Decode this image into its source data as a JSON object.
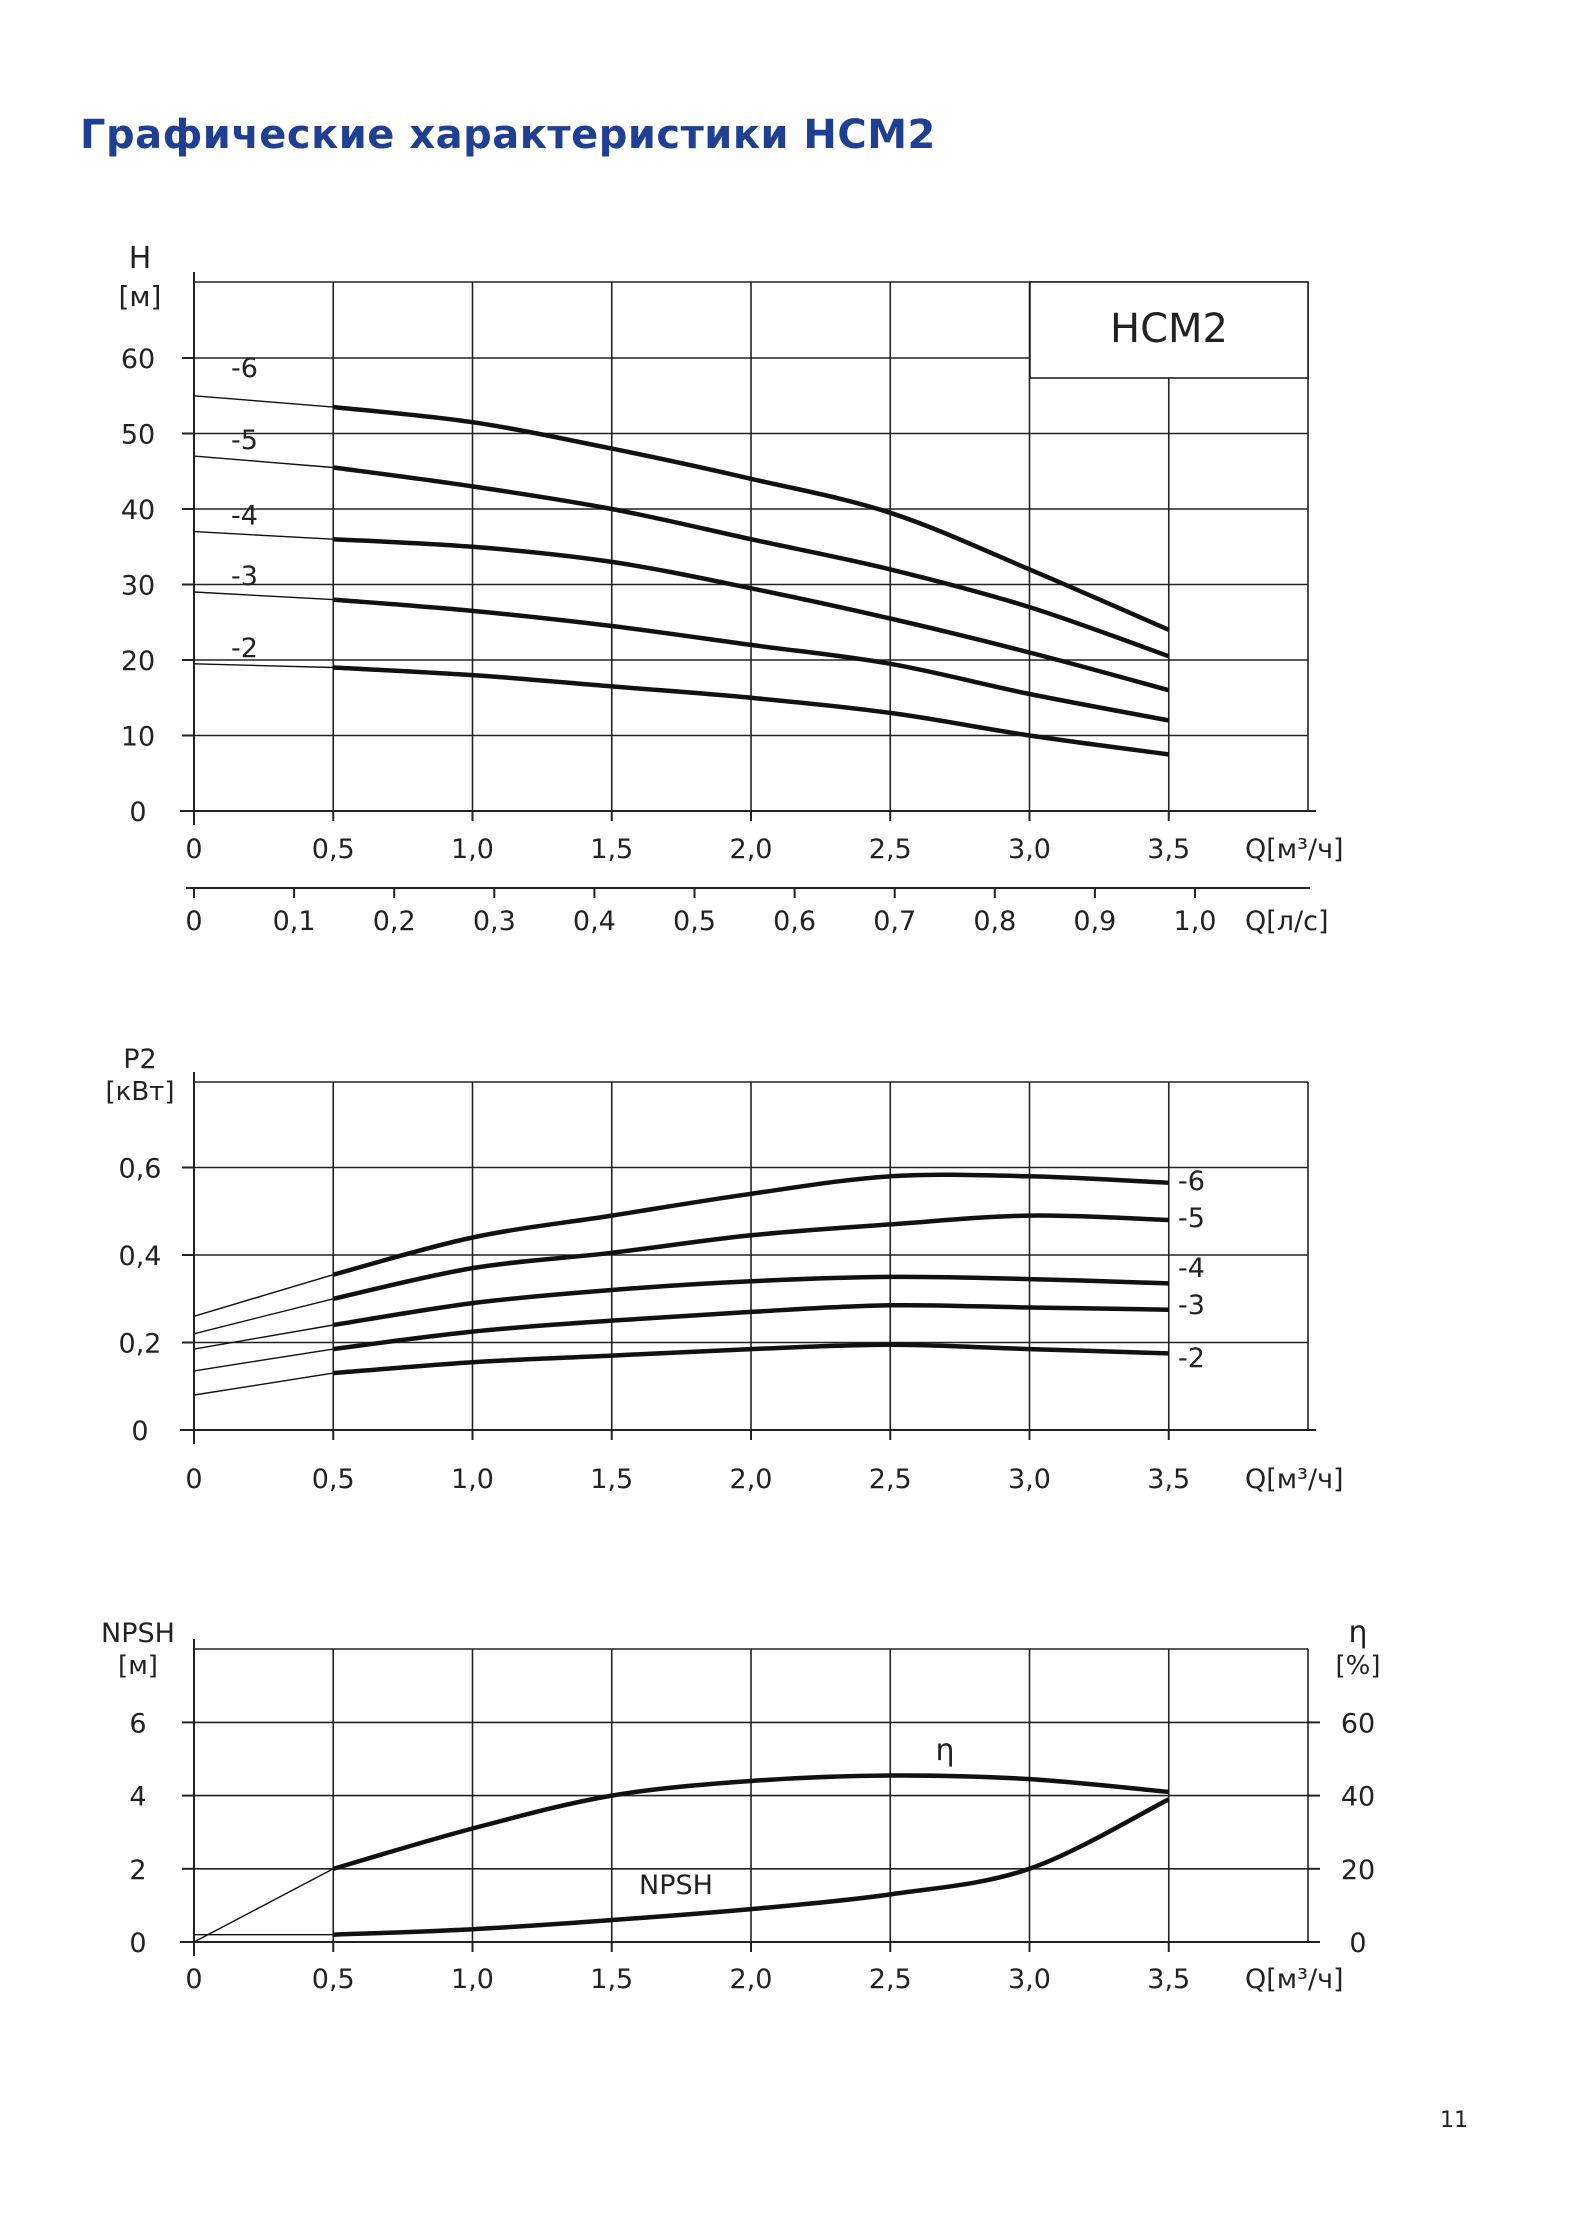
{
  "page": {
    "title": "Графические характеристики НСМ2",
    "page_number": "11",
    "title_color": "#1f3f93"
  },
  "chart_data": [
    {
      "type": "line",
      "title": "НСМ2",
      "ylabel": "H",
      "yunit": "[м]",
      "xlabel": "Q[м³/ч]",
      "xlabel2": "Q[л/с]",
      "xlim": [
        0,
        4
      ],
      "ylim": [
        0,
        70
      ],
      "xticks": [
        0,
        0.5,
        1.0,
        1.5,
        2.0,
        2.5,
        3.0,
        3.5
      ],
      "xtick_labels": [
        "0",
        "0,5",
        "1,0",
        "1,5",
        "2,0",
        "2,5",
        "3,0",
        "3,5"
      ],
      "yticks": [
        0,
        10,
        20,
        30,
        40,
        50,
        60
      ],
      "ytick_labels": [
        "0",
        "10",
        "20",
        "30",
        "40",
        "50",
        "60"
      ],
      "x2_ticks": [
        0,
        0.1,
        0.2,
        0.3,
        0.4,
        0.5,
        0.6,
        0.7,
        0.8,
        0.9,
        1.0
      ],
      "x2_tick_labels": [
        "0",
        "0,1",
        "0,2",
        "0,3",
        "0,4",
        "0,5",
        "0,6",
        "0,7",
        "0,8",
        "0,9",
        "1,0"
      ],
      "grid": true,
      "series": [
        {
          "name": "-6",
          "x": [
            0,
            0.5,
            1.0,
            1.5,
            2.0,
            2.5,
            3.0,
            3.5
          ],
          "values": [
            55,
            53.5,
            51.5,
            48,
            44,
            39.5,
            32,
            24
          ]
        },
        {
          "name": "-5",
          "x": [
            0,
            0.5,
            1.0,
            1.5,
            2.0,
            2.5,
            3.0,
            3.5
          ],
          "values": [
            47,
            45.5,
            43,
            40,
            36,
            32,
            27,
            20.5
          ]
        },
        {
          "name": "-4",
          "x": [
            0,
            0.5,
            1.0,
            1.5,
            2.0,
            2.5,
            3.0,
            3.5
          ],
          "values": [
            37,
            36,
            35,
            33,
            29.5,
            25.5,
            21,
            16
          ]
        },
        {
          "name": "-3",
          "x": [
            0,
            0.5,
            1.0,
            1.5,
            2.0,
            2.5,
            3.0,
            3.5
          ],
          "values": [
            29,
            28,
            26.5,
            24.5,
            22,
            19.5,
            15.5,
            12
          ]
        },
        {
          "name": "-2",
          "x": [
            0,
            0.5,
            1.0,
            1.5,
            2.0,
            2.5,
            3.0,
            3.5
          ],
          "values": [
            19.5,
            19,
            18,
            16.5,
            15,
            13,
            10,
            7.5
          ]
        }
      ]
    },
    {
      "type": "line",
      "ylabel": "P2",
      "yunit": "[кВт]",
      "xlabel": "Q[м³/ч]",
      "xlim": [
        0,
        4
      ],
      "ylim": [
        0,
        0.8
      ],
      "xticks": [
        0,
        0.5,
        1.0,
        1.5,
        2.0,
        2.5,
        3.0,
        3.5
      ],
      "xtick_labels": [
        "0",
        "0,5",
        "1,0",
        "1,5",
        "2,0",
        "2,5",
        "3,0",
        "3,5"
      ],
      "yticks": [
        0,
        0.2,
        0.4,
        0.6
      ],
      "ytick_labels": [
        "0",
        "0,2",
        "0,4",
        "0,6"
      ],
      "grid": true,
      "series": [
        {
          "name": "-6",
          "x": [
            0,
            0.5,
            1.0,
            1.5,
            2.0,
            2.5,
            3.0,
            3.5
          ],
          "values": [
            0.26,
            0.355,
            0.44,
            0.49,
            0.54,
            0.58,
            0.58,
            0.565
          ]
        },
        {
          "name": "-5",
          "x": [
            0,
            0.5,
            1.0,
            1.5,
            2.0,
            2.5,
            3.0,
            3.5
          ],
          "values": [
            0.22,
            0.3,
            0.37,
            0.405,
            0.445,
            0.47,
            0.49,
            0.48
          ]
        },
        {
          "name": "-4",
          "x": [
            0,
            0.5,
            1.0,
            1.5,
            2.0,
            2.5,
            3.0,
            3.5
          ],
          "values": [
            0.185,
            0.24,
            0.29,
            0.32,
            0.34,
            0.35,
            0.345,
            0.335
          ]
        },
        {
          "name": "-3",
          "x": [
            0,
            0.5,
            1.0,
            1.5,
            2.0,
            2.5,
            3.0,
            3.5
          ],
          "values": [
            0.135,
            0.185,
            0.225,
            0.25,
            0.27,
            0.285,
            0.28,
            0.275
          ]
        },
        {
          "name": "-2",
          "x": [
            0,
            0.5,
            1.0,
            1.5,
            2.0,
            2.5,
            3.0,
            3.5
          ],
          "values": [
            0.08,
            0.13,
            0.155,
            0.17,
            0.185,
            0.195,
            0.185,
            0.175
          ]
        }
      ]
    },
    {
      "type": "line",
      "ylabel": "NPSH",
      "yunit": "[м]",
      "y2label": "η",
      "y2unit": "[%]",
      "xlabel": "Q[м³/ч]",
      "xlim": [
        0,
        4
      ],
      "ylim": [
        0,
        8
      ],
      "y2lim": [
        0,
        80
      ],
      "xticks": [
        0,
        0.5,
        1.0,
        1.5,
        2.0,
        2.5,
        3.0,
        3.5
      ],
      "xtick_labels": [
        "0",
        "0,5",
        "1,0",
        "1,5",
        "2,0",
        "2,5",
        "3,0",
        "3,5"
      ],
      "yticks": [
        0,
        2,
        4,
        6
      ],
      "ytick_labels": [
        "0",
        "2",
        "4",
        "6"
      ],
      "y2ticks": [
        0,
        20,
        40,
        60
      ],
      "y2tick_labels": [
        "0",
        "20",
        "40",
        "60"
      ],
      "grid": true,
      "series": [
        {
          "name": "η",
          "x": [
            0,
            0.5,
            1.0,
            1.5,
            2.0,
            2.5,
            3.0,
            3.5
          ],
          "values": [
            0,
            20,
            31,
            40,
            44,
            45.5,
            44.5,
            41
          ]
        },
        {
          "name": "NPSH",
          "x": [
            0,
            0.5,
            1.0,
            1.5,
            2.0,
            2.5,
            3.0,
            3.5
          ],
          "values": [
            0.2,
            0.2,
            0.35,
            0.6,
            0.9,
            1.3,
            2.0,
            3.9
          ]
        }
      ]
    }
  ]
}
